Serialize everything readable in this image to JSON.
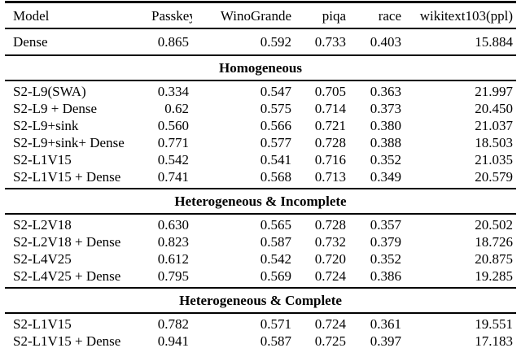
{
  "table": {
    "columns": [
      "Model",
      "Passkey",
      "WinoGrande",
      "piqa",
      "race",
      "wikitext103(ppl)"
    ],
    "top_rows": [
      {
        "model": "Dense",
        "values": [
          "0.865",
          "0.592",
          "0.733",
          "0.403",
          "15.884"
        ]
      }
    ],
    "sections": [
      {
        "title": "Homogeneous",
        "rows": [
          {
            "model": "S2-L9(SWA)",
            "values": [
              "0.334",
              "0.547",
              "0.705",
              "0.363",
              "21.997"
            ]
          },
          {
            "model": "S2-L9 + Dense",
            "values": [
              "0.62",
              "0.575",
              "0.714",
              "0.373",
              "20.450"
            ]
          },
          {
            "model": "S2-L9+sink",
            "values": [
              "0.560",
              "0.566",
              "0.721",
              "0.380",
              "21.037"
            ]
          },
          {
            "model": "S2-L9+sink+ Dense",
            "values": [
              "0.771",
              "0.577",
              "0.728",
              "0.388",
              "18.503"
            ]
          },
          {
            "model": "S2-L1V15",
            "values": [
              "0.542",
              "0.541",
              "0.716",
              "0.352",
              "21.035"
            ]
          },
          {
            "model": "S2-L1V15 + Dense",
            "values": [
              "0.741",
              "0.568",
              "0.713",
              "0.349",
              "20.579"
            ]
          }
        ]
      },
      {
        "title": "Heterogeneous & Incomplete",
        "rows": [
          {
            "model": "S2-L2V18",
            "values": [
              "0.630",
              "0.565",
              "0.728",
              "0.357",
              "20.502"
            ]
          },
          {
            "model": "S2-L2V18 + Dense",
            "values": [
              "0.823",
              "0.587",
              "0.732",
              "0.379",
              "18.726"
            ]
          },
          {
            "model": "S2-L4V25",
            "values": [
              "0.612",
              "0.542",
              "0.720",
              "0.352",
              "20.875"
            ]
          },
          {
            "model": "S2-L4V25 + Dense",
            "values": [
              "0.795",
              "0.569",
              "0.724",
              "0.386",
              "19.285"
            ]
          }
        ]
      },
      {
        "title": "Heterogeneous & Complete",
        "rows": [
          {
            "model": "S2-L1V15",
            "values": [
              "0.782",
              "0.571",
              "0.724",
              "0.361",
              "19.551"
            ]
          },
          {
            "model": "S2-L1V15 + Dense",
            "values": [
              "0.941",
              "0.587",
              "0.725",
              "0.397",
              "17.183"
            ]
          }
        ]
      }
    ]
  },
  "colors": {
    "rule": "#000000",
    "text": "#000000",
    "background": "#ffffff"
  }
}
